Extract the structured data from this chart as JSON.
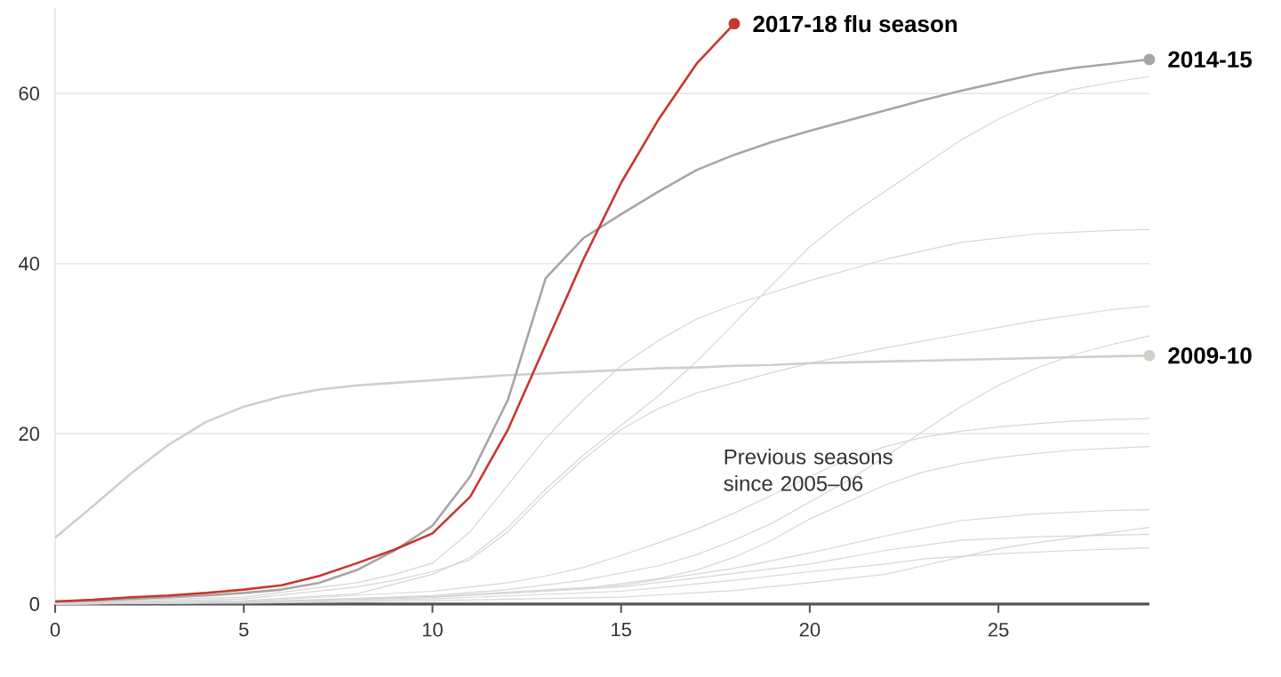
{
  "chart_data": {
    "type": "line",
    "xlim": [
      0,
      29
    ],
    "ylim": [
      0,
      70
    ],
    "xticks": [
      0,
      5,
      10,
      15,
      20,
      25
    ],
    "yticks": [
      0,
      20,
      40,
      60
    ],
    "grid": "y",
    "annotations": [
      "Previous seasons since 2005–06"
    ],
    "series": [
      {
        "color": "#d6d6d6",
        "x": [
          0,
          5,
          8,
          10,
          11,
          12,
          13,
          14,
          15,
          16,
          17,
          18,
          19,
          20,
          21,
          22,
          23,
          24,
          25,
          26,
          27,
          28,
          29
        ],
        "values": [
          0.1,
          0.4,
          1.2,
          3.5,
          5.5,
          9,
          13.5,
          17.5,
          21,
          24.5,
          28.5,
          33,
          37.5,
          42,
          45.5,
          48.5,
          51.5,
          54.5,
          57,
          59,
          60.5,
          61.3,
          62
        ]
      },
      {
        "color": "#d6d6d6",
        "x": [
          0,
          5,
          8,
          9,
          10,
          11,
          12,
          13,
          14,
          15,
          16,
          17,
          18,
          20,
          22,
          24,
          26,
          28,
          29
        ],
        "values": [
          0.2,
          0.8,
          2.5,
          3.5,
          4.8,
          8.5,
          14,
          19.5,
          24,
          28,
          31,
          33.5,
          35.2,
          38,
          40.5,
          42.5,
          43.5,
          43.9,
          44
        ]
      },
      {
        "color": "#d6d6d6",
        "x": [
          0,
          5,
          8,
          9,
          10,
          11,
          12,
          13,
          14,
          15,
          16,
          17,
          18,
          19,
          20,
          22,
          24,
          26,
          28,
          29
        ],
        "values": [
          0.1,
          0.6,
          2,
          2.8,
          3.8,
          5.2,
          8.5,
          13,
          17,
          20.5,
          23,
          24.8,
          26,
          27.2,
          28.3,
          30.1,
          31.7,
          33.3,
          34.6,
          35
        ]
      },
      {
        "color": "#d6d6d6",
        "x": [
          0,
          5,
          10,
          12,
          14,
          16,
          17,
          18,
          19,
          20,
          21,
          22,
          23,
          24,
          25,
          26,
          27,
          28,
          29
        ],
        "values": [
          0,
          0.2,
          1.0,
          1.7,
          2.8,
          4.5,
          5.8,
          7.5,
          9.5,
          12,
          14.5,
          17.3,
          20.3,
          23.2,
          25.7,
          27.7,
          29.3,
          30.5,
          31.5
        ]
      },
      {
        "color": "#d6d6d6",
        "x": [
          0,
          5,
          10,
          12,
          13,
          14,
          15,
          16,
          17,
          18,
          19,
          20,
          21,
          22,
          23,
          24,
          25,
          26,
          27,
          28,
          29
        ],
        "values": [
          0,
          0.3,
          1.5,
          2.5,
          3.3,
          4.3,
          5.7,
          7.2,
          8.8,
          10.7,
          12.8,
          15,
          17,
          18.5,
          19.6,
          20.3,
          20.8,
          21.2,
          21.5,
          21.7,
          21.8
        ]
      },
      {
        "color": "#d6d6d6",
        "x": [
          0,
          5,
          10,
          14,
          16,
          17,
          18,
          19,
          20,
          21,
          22,
          23,
          24,
          25,
          26,
          27,
          28,
          29
        ],
        "values": [
          0,
          0.2,
          0.8,
          1.8,
          3,
          4,
          5.5,
          7.5,
          10,
          12,
          14,
          15.5,
          16.5,
          17.2,
          17.7,
          18.1,
          18.3,
          18.5
        ]
      },
      {
        "color": "#d6d6d6",
        "x": [
          0,
          5,
          10,
          15,
          18,
          20,
          22,
          24,
          26,
          28,
          29
        ],
        "values": [
          0,
          0.2,
          0.9,
          2.2,
          4.2,
          6,
          8,
          9.8,
          10.6,
          11,
          11.1
        ]
      },
      {
        "color": "#d6d6d6",
        "x": [
          0,
          5,
          10,
          15,
          18,
          20,
          22,
          24,
          26,
          28,
          29
        ],
        "values": [
          0,
          0.2,
          0.8,
          2,
          3.6,
          4.7,
          6.3,
          7.5,
          7.9,
          8.1,
          8.2
        ]
      },
      {
        "color": "#d6d6d6",
        "x": [
          0,
          5,
          10,
          15,
          18,
          20,
          22,
          23,
          24,
          25,
          26,
          27,
          28,
          29
        ],
        "values": [
          0,
          0.1,
          0.4,
          0.8,
          1.6,
          2.5,
          3.5,
          4.5,
          5.5,
          6.5,
          7.2,
          7.8,
          8.4,
          9
        ]
      },
      {
        "color": "#d6d6d6",
        "x": [
          0,
          5,
          10,
          15,
          18,
          20,
          22,
          23,
          24,
          25,
          27,
          29
        ],
        "values": [
          0,
          0.2,
          0.6,
          1.5,
          2.8,
          3.8,
          4.7,
          5.3,
          5.6,
          5.9,
          6.3,
          6.6
        ]
      },
      {
        "name": "2009-10",
        "color": "#cfcfca",
        "x": [
          0,
          1,
          2,
          3,
          4,
          5,
          6,
          7,
          8,
          9,
          10,
          11,
          12,
          13,
          14,
          15,
          16,
          17,
          18,
          19,
          20,
          21,
          22,
          23,
          24,
          25,
          26,
          27,
          28,
          29
        ],
        "values": [
          7.8,
          11.5,
          15.3,
          18.7,
          21.4,
          23.2,
          24.4,
          25.2,
          25.7,
          26,
          26.3,
          26.6,
          26.9,
          27.1,
          27.3,
          27.5,
          27.7,
          27.8,
          28,
          28.1,
          28.3,
          28.4,
          28.5,
          28.6,
          28.7,
          28.8,
          28.9,
          29,
          29.1,
          29.2
        ]
      },
      {
        "name": "2014-15",
        "color": "#a6a6a3",
        "x": [
          0,
          1,
          2,
          3,
          4,
          5,
          6,
          7,
          8,
          9,
          10,
          11,
          12,
          13,
          14,
          15,
          16,
          17,
          18,
          19,
          20,
          21,
          22,
          23,
          24,
          25,
          26,
          27,
          28,
          29
        ],
        "values": [
          0.3,
          0.4,
          0.6,
          0.8,
          1.0,
          1.3,
          1.7,
          2.5,
          4,
          6.3,
          9.2,
          15,
          24,
          38.3,
          43,
          45.8,
          48.5,
          51,
          52.8,
          54.3,
          55.6,
          56.8,
          58,
          59.2,
          60.3,
          61.3,
          62.3,
          63,
          63.5,
          64
        ]
      },
      {
        "name": "2017-18 flu season",
        "color": "#c8372d",
        "x": [
          0,
          1,
          2,
          3,
          4,
          5,
          6,
          7,
          8,
          9,
          10,
          11,
          12,
          13,
          14,
          15,
          16,
          17,
          18
        ],
        "values": [
          0.3,
          0.5,
          0.8,
          1.0,
          1.3,
          1.7,
          2.2,
          3.3,
          4.8,
          6.4,
          8.3,
          12.6,
          20.5,
          30.5,
          40.5,
          49.5,
          57,
          63.5,
          68.2
        ]
      }
    ]
  }
}
